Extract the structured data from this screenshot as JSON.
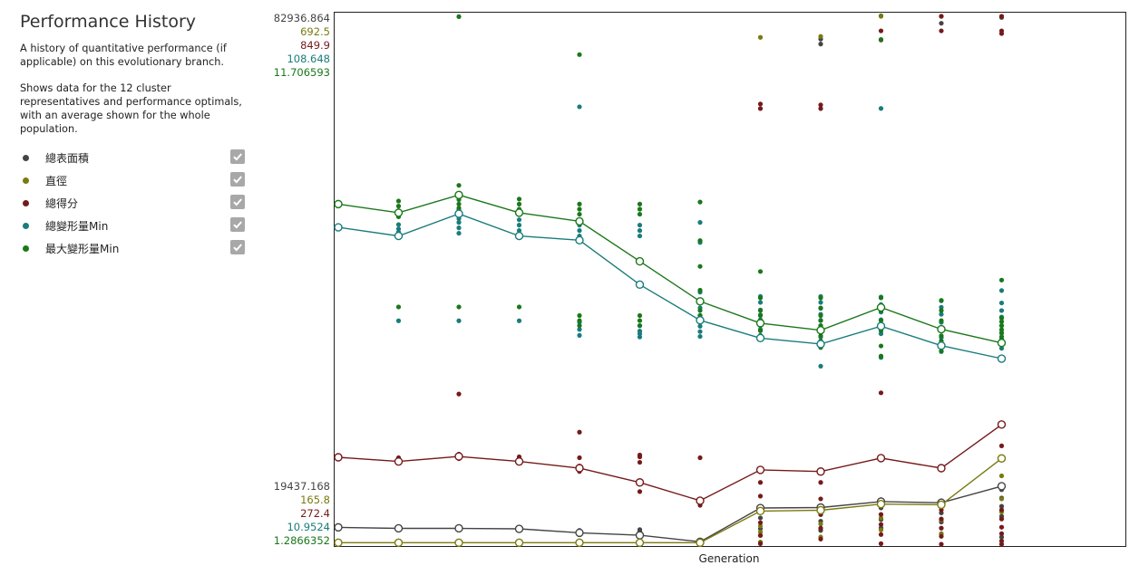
{
  "sidebar": {
    "title": "Performance History",
    "description1": "A history of quantitative performance (if applicable) on this evolutionary branch.",
    "description2": "Shows data for the 12 cluster representatives and performance optimals, with an average shown for the whole population."
  },
  "colors": {
    "series1": "#444444",
    "series2": "#7a7a10",
    "series3": "#751a1a",
    "series4": "#1a7c7c",
    "series5": "#1a781a",
    "checkbox": "#a8a8a8"
  },
  "chart_data": {
    "type": "scatter",
    "title": "Performance History",
    "xlabel": "Generation",
    "x": [
      1,
      2,
      3,
      4,
      5,
      6,
      7,
      8,
      9,
      10,
      11,
      12
    ],
    "legend": [
      "總表面積",
      "直徑",
      "總得分",
      "總變形量Min",
      "最大變形量Min"
    ],
    "series": [
      {
        "name": "總表面積",
        "color": "#444444",
        "axis_max": "82936.864",
        "axis_min": "19437.168",
        "ylim": [
          19437.168,
          82936.864
        ],
        "average": [
          21465,
          21346,
          21346,
          21286,
          20811,
          20514,
          19734,
          23789,
          23848,
          24565,
          24422,
          26419
        ],
        "points": [
          [
            21465
          ],
          [
            21346
          ],
          [
            21522,
            21300
          ],
          [
            21465,
            21286
          ],
          [
            21100,
            20811,
            20600
          ],
          [
            21200,
            20950,
            20514,
            20300
          ],
          [
            19734,
            19700
          ],
          [
            23700,
            23300,
            22600,
            21300,
            20500
          ],
          [
            80200,
            79600,
            23848,
            23000,
            22200,
            21100
          ],
          [
            83000,
            24800,
            24400,
            23800,
            22400,
            21400
          ],
          [
            82100,
            24600,
            24000,
            23200,
            22100,
            20700
          ],
          [
            82800,
            26000,
            25000,
            24000,
            22800,
            20300
          ]
        ]
      },
      {
        "name": "直徑",
        "color": "#7a7a10",
        "axis_max": "692.5",
        "axis_min": "165.8",
        "ylim": [
          165.8,
          692.5
        ],
        "average": [
          167.3,
          167.3,
          167.3,
          167.3,
          167.3,
          167.3,
          167.3,
          198.9,
          199.7,
          205.8,
          205.2,
          251.4
        ],
        "points": [
          [
            167.3
          ],
          [
            167.3
          ],
          [
            167.3
          ],
          [
            167.3
          ],
          [
            167.3
          ],
          [
            167.3
          ],
          [
            167.3
          ],
          [
            671.5,
            184.0,
            178.0,
            168.0
          ],
          [
            672.4,
            196.0,
            186.0,
            173.0
          ],
          [
            692.5,
            204.0,
            192.0,
            180.0
          ],
          [
            692.5,
            203.0,
            190.0,
            176.0
          ],
          [
            234.0,
            222.0,
            211.0,
            198.0
          ]
        ]
      },
      {
        "name": "總得分",
        "color": "#751a1a",
        "axis_max": "849.9",
        "axis_min": "272.4",
        "ylim": [
          272.4,
          849.9
        ],
        "average": [
          367.5,
          362.9,
          368.4,
          362.9,
          355.6,
          340.0,
          320.0,
          353.7,
          351.9,
          366.6,
          355.6,
          403.3
        ],
        "points": [
          [
            367.5,
            366.0
          ],
          [
            362.9,
            367.0
          ],
          [
            436.7,
            371.0,
            366.0
          ],
          [
            363.0,
            367.0,
            368.0
          ],
          [
            395.0,
            367.0,
            358.0,
            352.0
          ],
          [
            370.0,
            368.0,
            362.0,
            340.0,
            330.0
          ],
          [
            367.0,
            315.0,
            272.4,
            270.0
          ],
          [
            754.0,
            749.0,
            355.0,
            340.0,
            325.0,
            310.0,
            296.0,
            282.0,
            273.0
          ],
          [
            753.0,
            749.0,
            352.0,
            340.0,
            322.0,
            305.0,
            290.0,
            278.0
          ],
          [
            834.0,
            824.0,
            438.0,
            320.0,
            305.0,
            294.0,
            283.0,
            273.0
          ],
          [
            849.9,
            834.0,
            320.0,
            310.0,
            300.0,
            290.0,
            281.0,
            272.4
          ],
          [
            849.9,
            834.0,
            831.0,
            380.0,
            310.0,
            300.0,
            291.0,
            284.0,
            276.0,
            272.4
          ]
        ]
      },
      {
        "name": "總變形量Min",
        "color": "#1a7c7c",
        "axis_max": "108.648",
        "axis_min": "10.9524",
        "ylim": [
          10.9524,
          108.648
        ],
        "average": [
          69.6,
          68.0,
          72.1,
          68.0,
          67.2,
          59.0,
          52.4,
          49.1,
          48.0,
          51.3,
          47.7,
          45.3
        ],
        "points": [
          [
            69.6
          ],
          [
            70.1,
            69.3,
            68.7,
            68.0,
            52.3
          ],
          [
            72.8,
            71.2,
            70.5,
            69.5,
            68.5,
            52.3
          ],
          [
            71.0,
            70.0,
            69.0,
            68.0,
            52.3
          ],
          [
            70.0,
            69.0,
            68.0,
            52.0,
            50.7,
            49.6,
            91.9
          ],
          [
            70.0,
            69.0,
            68.0,
            51.4,
            50.4,
            49.9,
            49.3
          ],
          [
            70.5,
            66.8,
            57.6,
            54.7,
            53.3,
            52.3,
            51.3,
            50.3,
            49.4
          ],
          [
            56.8,
            55.7,
            54.3,
            53.4,
            52.5,
            51.6,
            50.7,
            49.6
          ],
          [
            56.8,
            55.7,
            54.6,
            53.5,
            52.4,
            51.4,
            50.4,
            49.3,
            48.4,
            43.9
          ],
          [
            56.7,
            55.3,
            53.9,
            52.5,
            51.3,
            49.9,
            45.5,
            91.6
          ],
          [
            56.0,
            54.8,
            53.5,
            52.0,
            50.5,
            49.2,
            48.2,
            46.6
          ],
          [
            57.9,
            55.6,
            54.2,
            53.0,
            51.4,
            50.1,
            48.9,
            47.2
          ]
        ]
      },
      {
        "name": "最大變形量Min",
        "color": "#1a781a",
        "axis_max": "11.706593",
        "axis_min": "1.2866352",
        "ylim": [
          1.2866352,
          11.706593
        ],
        "average": [
          8.0,
          7.83,
          8.18,
          7.83,
          7.66,
          6.87,
          6.08,
          5.65,
          5.51,
          5.96,
          5.53,
          5.26
        ],
        "points": [
          [
            8.0
          ],
          [
            8.06,
            7.96,
            7.87,
            7.75,
            5.97
          ],
          [
            8.37,
            8.21,
            8.09,
            8.0,
            7.92,
            5.97,
            11.7
          ],
          [
            8.1,
            8.0,
            7.9,
            7.8,
            5.97
          ],
          [
            8.0,
            7.9,
            7.8,
            5.8,
            5.7,
            5.6,
            10.95
          ],
          [
            8.0,
            7.9,
            7.8,
            5.8,
            5.7,
            5.6
          ],
          [
            8.04,
            7.28,
            6.77,
            6.3,
            6.1,
            5.9,
            5.8,
            5.7
          ],
          [
            6.67,
            6.15,
            5.9,
            5.8,
            5.7,
            5.6,
            5.5,
            5.4
          ],
          [
            6.15,
            5.95,
            5.8,
            5.7,
            5.6,
            5.5,
            5.4,
            5.3,
            5.17
          ],
          [
            6.15,
            5.9,
            5.7,
            5.5,
            5.2,
            5.0,
            11.25
          ],
          [
            6.1,
            5.9,
            5.7,
            5.5,
            5.4,
            5.3,
            5.2,
            5.1
          ],
          [
            5.75,
            5.68,
            5.6,
            5.52,
            5.45,
            5.38,
            5.31,
            5.24,
            6.5
          ]
        ]
      }
    ]
  }
}
